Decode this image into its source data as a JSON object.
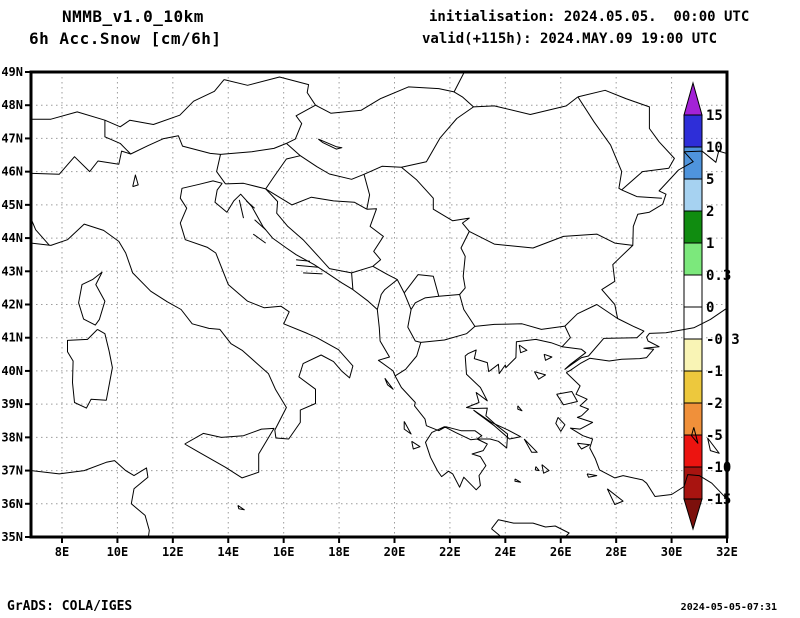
{
  "header": {
    "model": "NMMB_v1.0_10km",
    "field": "6h Acc.Snow [cm/6h]",
    "init": "initialisation: 2024.05.05.  00:00 UTC",
    "valid": "valid(+115h): 2024.MAY.09 19:00 UTC"
  },
  "axes": {
    "lat_labels": [
      "49N",
      "48N",
      "47N",
      "46N",
      "45N",
      "44N",
      "43N",
      "42N",
      "41N",
      "40N",
      "39N",
      "38N",
      "37N",
      "36N",
      "35N"
    ],
    "lat_values": [
      49,
      48,
      47,
      46,
      45,
      44,
      43,
      42,
      41,
      40,
      39,
      38,
      37,
      36,
      35
    ],
    "lon_labels": [
      "8E",
      "10E",
      "12E",
      "14E",
      "16E",
      "18E",
      "20E",
      "22E",
      "24E",
      "26E",
      "28E",
      "30E",
      "32E"
    ],
    "lon_values": [
      8,
      10,
      12,
      14,
      16,
      18,
      20,
      22,
      24,
      26,
      28,
      30,
      32
    ]
  },
  "colorbar": {
    "labels": [
      "15",
      "10",
      "5",
      "2",
      "1",
      "0.3",
      "0",
      "-0.3",
      "-1",
      "-2",
      "-5",
      "-10",
      "-15"
    ],
    "segment_colors": [
      "#2e2ed8",
      "#4f94dc",
      "#a6d2f1",
      "#108c10",
      "#7ce87c",
      "#ffffff",
      "#ffffff",
      "#f9f4b5",
      "#edc83d",
      "#f0903a",
      "#ec1410",
      "#a81410"
    ],
    "arrow_top_color": "#a322d6",
    "arrow_bottom_color": "#7c100c"
  },
  "style": {
    "grid_color": "#9c9c9c",
    "line_color": "#000000",
    "frame_color": "#000000",
    "background": "#ffffff"
  },
  "footer": {
    "left": "GrADS: COLA/IGES",
    "right": "2024-05-05-07:31"
  }
}
